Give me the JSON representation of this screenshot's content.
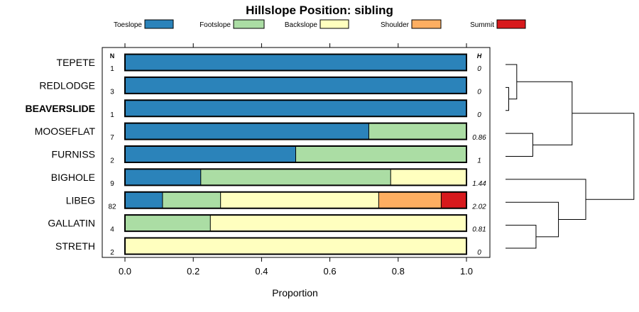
{
  "chart_data": {
    "type": "bar",
    "stacked": true,
    "orientation": "horizontal",
    "title": "Hillslope Position: sibling",
    "xlabel": "Proportion",
    "ylabel": "",
    "xlim": [
      0,
      1
    ],
    "xticks": [
      "0.0",
      "0.2",
      "0.4",
      "0.6",
      "0.8",
      "1.0"
    ],
    "legend_position": "top",
    "n_header": "N",
    "h_header": "H",
    "categories": [
      "TEPETE",
      "REDLODGE",
      "BEAVERSLIDE",
      "MOOSEFLAT",
      "FURNISS",
      "BIGHOLE",
      "LIBEG",
      "GALLATIN",
      "STRETH"
    ],
    "highlight_category": "BEAVERSLIDE",
    "n": [
      "1",
      "3",
      "1",
      "7",
      "2",
      "9",
      "82",
      "4",
      "2"
    ],
    "h": [
      "0",
      "0",
      "0",
      "0.86",
      "1",
      "1.44",
      "2.02",
      "0.81",
      "0"
    ],
    "series": [
      {
        "name": "Toeslope",
        "color": "#2B83BA",
        "values": [
          1.0,
          1.0,
          1.0,
          0.714,
          0.5,
          0.222,
          0.11,
          0.0,
          0.0
        ]
      },
      {
        "name": "Footslope",
        "color": "#ABDDA4",
        "values": [
          0.0,
          0.0,
          0.0,
          0.286,
          0.5,
          0.556,
          0.17,
          0.25,
          0.0
        ]
      },
      {
        "name": "Backslope",
        "color": "#FFFFBF",
        "values": [
          0.0,
          0.0,
          0.0,
          0.0,
          0.0,
          0.222,
          0.463,
          0.75,
          1.0
        ]
      },
      {
        "name": "Shoulder",
        "color": "#FDAE61",
        "values": [
          0.0,
          0.0,
          0.0,
          0.0,
          0.0,
          0.0,
          0.183,
          0.0,
          0.0
        ]
      },
      {
        "name": "Summit",
        "color": "#D7191C",
        "values": [
          0.0,
          0.0,
          0.0,
          0.0,
          0.0,
          0.0,
          0.074,
          0.0,
          0.0
        ]
      }
    ],
    "dendrogram": {
      "type": "hierarchical-clustering",
      "merges": [
        {
          "left": "REDLODGE",
          "right": "BEAVERSLIDE",
          "height": 0.04
        },
        {
          "left": "TEPETE",
          "right": "c0",
          "height": 0.14
        },
        {
          "left": "MOOSEFLAT",
          "right": "FURNISS",
          "height": 0.34
        },
        {
          "left": "GALLATIN",
          "right": "STRETH",
          "height": 0.38
        },
        {
          "left": "LIBEG",
          "right": "c3",
          "height": 0.66
        },
        {
          "left": "BIGHOLE",
          "right": "c4",
          "height": 1.0
        },
        {
          "left": "c1",
          "right": "c2",
          "height": 0.83
        },
        {
          "left": "c6",
          "right": "c5",
          "height": 1.6
        }
      ]
    }
  }
}
